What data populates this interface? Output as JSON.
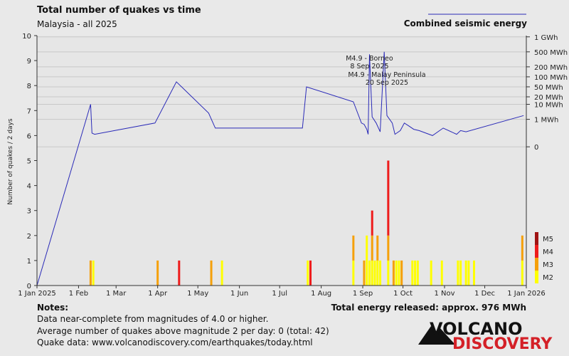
{
  "title": "Total number of quakes vs time",
  "subtitle": "Malaysia - all 2025",
  "legend_energy": "Combined seismic energy",
  "ylabel": "Number of quakes / 2 days",
  "total_energy": "Total energy released: approx. 976 MWh",
  "notes": {
    "heading": "Notes:",
    "line1": "Data near-complete from magnitudes of 4.0 or higher.",
    "line2": "Average number of quakes above magnitude 2 per day: 0 (total: 42)",
    "line3": "Quake data: www.volcanodiscovery.com/earthquakes/today.html"
  },
  "logo": {
    "part1": "VOLCANO",
    "part2": "DISCOVERY"
  },
  "colors": {
    "M2": "#ffff00",
    "M3": "#f5a00a",
    "M4": "#ee1c1c",
    "M5": "#a01414",
    "energy": "#2a2ab8"
  },
  "chart_data": {
    "type": "bar",
    "title": "Total number of quakes vs time",
    "subtitle": "Malaysia - all 2025",
    "ylabel": "Number of quakes / 2 days",
    "ylim": [
      0,
      10
    ],
    "yticks": [
      "0",
      "1",
      "2",
      "3",
      "4",
      "5",
      "6",
      "7",
      "8",
      "9",
      "10"
    ],
    "xlim_days": [
      0,
      365
    ],
    "xticks": [
      {
        "day": 0,
        "label": "1 Jan 2025"
      },
      {
        "day": 31,
        "label": "1 Feb"
      },
      {
        "day": 59,
        "label": "1 Mar"
      },
      {
        "day": 90,
        "label": "1 Apr"
      },
      {
        "day": 120,
        "label": "1 May"
      },
      {
        "day": 151,
        "label": "1 Jun"
      },
      {
        "day": 181,
        "label": "1 Jul"
      },
      {
        "day": 212,
        "label": "1 Aug"
      },
      {
        "day": 243,
        "label": "1 Sep"
      },
      {
        "day": 273,
        "label": "1 Oct"
      },
      {
        "day": 304,
        "label": "1 Nov"
      },
      {
        "day": 334,
        "label": "1 Dec"
      },
      {
        "day": 365,
        "label": "1 Jan 2026"
      }
    ],
    "magnitude_legend": [
      "M5",
      "M4",
      "M3",
      "M2"
    ],
    "bars": [
      {
        "day": 40,
        "M2": 0,
        "M3": 1,
        "M4": 0,
        "M5": 0
      },
      {
        "day": 42,
        "M2": 1,
        "M3": 0,
        "M4": 0,
        "M5": 0
      },
      {
        "day": 90,
        "M2": 0,
        "M3": 1,
        "M4": 0,
        "M5": 0
      },
      {
        "day": 106,
        "M2": 0,
        "M3": 0,
        "M4": 1,
        "M5": 0
      },
      {
        "day": 130,
        "M2": 0,
        "M3": 1,
        "M4": 0,
        "M5": 0
      },
      {
        "day": 138,
        "M2": 1,
        "M3": 0,
        "M4": 0,
        "M5": 0
      },
      {
        "day": 202,
        "M2": 1,
        "M3": 0,
        "M4": 0,
        "M5": 0
      },
      {
        "day": 204,
        "M2": 0,
        "M3": 0,
        "M4": 1,
        "M5": 0
      },
      {
        "day": 236,
        "M2": 1,
        "M3": 1,
        "M4": 0,
        "M5": 0
      },
      {
        "day": 244,
        "M2": 0,
        "M3": 1,
        "M4": 0,
        "M5": 0
      },
      {
        "day": 246,
        "M2": 2,
        "M3": 0,
        "M4": 0,
        "M5": 0
      },
      {
        "day": 248,
        "M2": 1,
        "M3": 0,
        "M4": 0,
        "M5": 0
      },
      {
        "day": 250,
        "M2": 1,
        "M3": 1,
        "M4": 1,
        "M5": 0
      },
      {
        "day": 252,
        "M2": 1,
        "M3": 0,
        "M4": 0,
        "M5": 0
      },
      {
        "day": 254,
        "M2": 1,
        "M3": 1,
        "M4": 0,
        "M5": 0
      },
      {
        "day": 256,
        "M2": 1,
        "M3": 0,
        "M4": 0,
        "M5": 0
      },
      {
        "day": 262,
        "M2": 1,
        "M3": 1,
        "M4": 3,
        "M5": 0
      },
      {
        "day": 266,
        "M2": 0,
        "M3": 1,
        "M4": 0,
        "M5": 0
      },
      {
        "day": 268,
        "M2": 1,
        "M3": 0,
        "M4": 0,
        "M5": 0
      },
      {
        "day": 270,
        "M2": 1,
        "M3": 0,
        "M4": 0,
        "M5": 0
      },
      {
        "day": 272,
        "M2": 0,
        "M3": 1,
        "M4": 0,
        "M5": 0
      },
      {
        "day": 280,
        "M2": 1,
        "M3": 0,
        "M4": 0,
        "M5": 0
      },
      {
        "day": 282,
        "M2": 1,
        "M3": 0,
        "M4": 0,
        "M5": 0
      },
      {
        "day": 284,
        "M2": 1,
        "M3": 0,
        "M4": 0,
        "M5": 0
      },
      {
        "day": 294,
        "M2": 1,
        "M3": 0,
        "M4": 0,
        "M5": 0
      },
      {
        "day": 302,
        "M2": 1,
        "M3": 0,
        "M4": 0,
        "M5": 0
      },
      {
        "day": 314,
        "M2": 1,
        "M3": 0,
        "M4": 0,
        "M5": 0
      },
      {
        "day": 316,
        "M2": 1,
        "M3": 0,
        "M4": 0,
        "M5": 0
      },
      {
        "day": 320,
        "M2": 1,
        "M3": 0,
        "M4": 0,
        "M5": 0
      },
      {
        "day": 322,
        "M2": 1,
        "M3": 0,
        "M4": 0,
        "M5": 0
      },
      {
        "day": 326,
        "M2": 1,
        "M3": 0,
        "M4": 0,
        "M5": 0
      },
      {
        "day": 362,
        "M2": 1,
        "M3": 1,
        "M4": 0,
        "M5": 0
      }
    ],
    "energy_axis": [
      {
        "label": "0",
        "y": 5.55
      },
      {
        "label": "1 MWh",
        "y": 6.65
      },
      {
        "label": "10 MWh",
        "y": 7.25
      },
      {
        "label": "20 MWh",
        "y": 7.55
      },
      {
        "label": "50 MWh",
        "y": 7.95
      },
      {
        "label": "100 MWh",
        "y": 8.35
      },
      {
        "label": "200 MWh",
        "y": 8.75
      },
      {
        "label": "500 MWh",
        "y": 9.35
      },
      {
        "label": "1 GWh",
        "y": 9.95
      }
    ],
    "energy_line": [
      [
        0,
        0
      ],
      [
        40,
        7.25
      ],
      [
        41,
        6.1
      ],
      [
        43,
        6.05
      ],
      [
        88,
        6.5
      ],
      [
        104,
        8.15
      ],
      [
        128,
        6.9
      ],
      [
        133,
        6.3
      ],
      [
        198,
        6.3
      ],
      [
        201,
        7.95
      ],
      [
        236,
        7.35
      ],
      [
        242,
        6.5
      ],
      [
        244,
        6.45
      ],
      [
        246,
        6.25
      ],
      [
        247,
        6.05
      ],
      [
        248,
        9.25
      ],
      [
        250,
        6.75
      ],
      [
        253,
        6.5
      ],
      [
        256,
        6.15
      ],
      [
        259,
        9.35
      ],
      [
        261,
        6.8
      ],
      [
        265,
        6.5
      ],
      [
        267,
        6.05
      ],
      [
        271,
        6.2
      ],
      [
        274,
        6.5
      ],
      [
        277,
        6.4
      ],
      [
        281,
        6.25
      ],
      [
        285,
        6.2
      ],
      [
        295,
        6.0
      ],
      [
        303,
        6.3
      ],
      [
        313,
        6.05
      ],
      [
        316,
        6.2
      ],
      [
        320,
        6.15
      ],
      [
        363,
        6.8
      ]
    ],
    "annotations": [
      {
        "day": 248,
        "y": 9.0,
        "text1": "M4.9 - Borneo",
        "text2": "8 Sep 2025"
      },
      {
        "day": 261,
        "y": 8.35,
        "text1": "M4.9 - Malay Peninsula",
        "text2": "20 Sep 2025"
      }
    ]
  }
}
